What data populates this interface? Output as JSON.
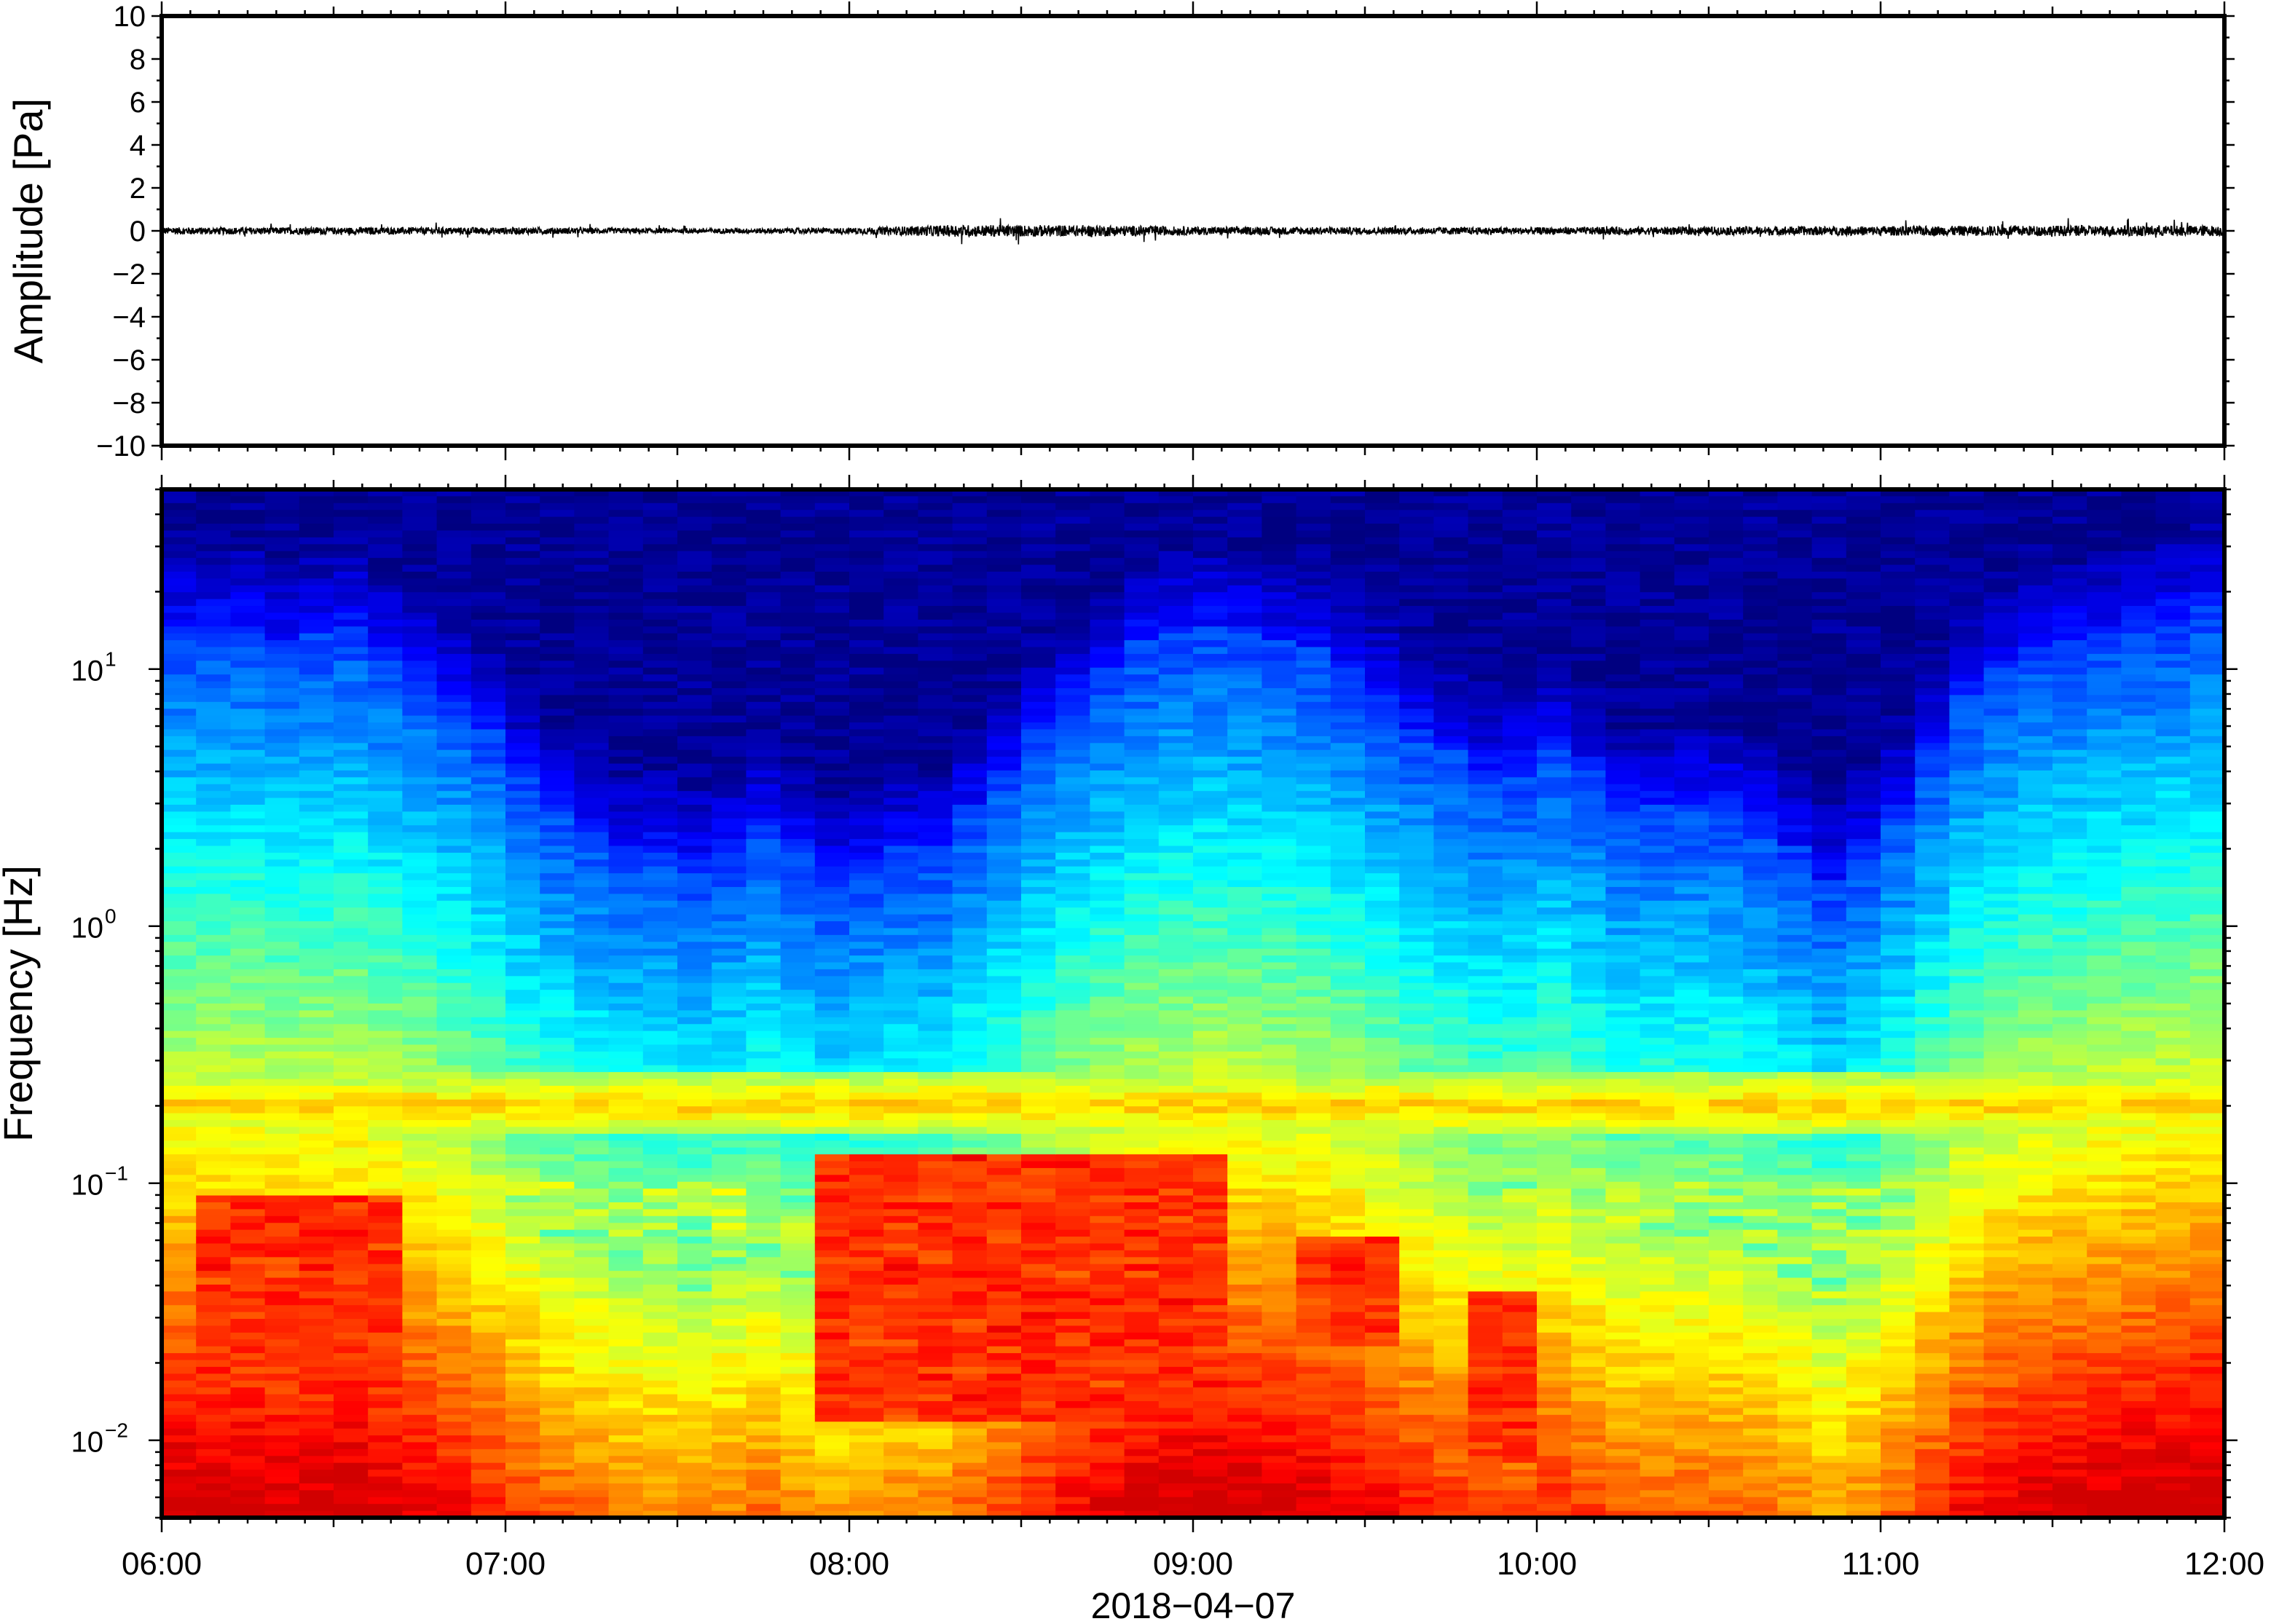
{
  "chart_data": [
    {
      "type": "line",
      "panel": "waveform",
      "ylabel": "Amplitude [Pa]",
      "ylim": [
        -10,
        10
      ],
      "yticks": [
        10,
        8,
        6,
        4,
        2,
        0,
        -2,
        -4,
        -6,
        -8,
        -10
      ],
      "ytick_labels": [
        "10",
        "8",
        "6",
        "4",
        "2",
        "0",
        "−2",
        "−4",
        "−6",
        "−8",
        "−10"
      ],
      "xlim": [
        "06:00",
        "12:00"
      ],
      "series": [
        {
          "color": "#000000",
          "time_hours": [
            6.0,
            6.5,
            7.0,
            7.5,
            8.0,
            8.3,
            8.5,
            8.8,
            9.0,
            9.5,
            10.0,
            10.5,
            11.0,
            11.5,
            12.0
          ],
          "envelope_pa": [
            0.3,
            0.3,
            0.3,
            0.2,
            0.25,
            0.5,
            0.5,
            0.45,
            0.35,
            0.3,
            0.3,
            0.35,
            0.4,
            0.45,
            0.45
          ]
        }
      ]
    },
    {
      "type": "heatmap",
      "panel": "spectrogram",
      "ylabel": "Frequency [Hz]",
      "yscale": "log",
      "ylim": [
        0.005,
        50
      ],
      "ytick_labels": [
        {
          "value": 10,
          "base": "10",
          "exp": "1"
        },
        {
          "value": 1,
          "base": "10",
          "exp": "0"
        },
        {
          "value": 0.1,
          "base": "10",
          "exp": "−1"
        },
        {
          "value": 0.01,
          "base": "10",
          "exp": "−2"
        }
      ],
      "xlabel": "2018−04−07",
      "xlim": [
        "06:00",
        "12:00"
      ],
      "x_tick_labels": [
        "06:00",
        "07:00",
        "08:00",
        "09:00",
        "10:00",
        "11:00",
        "12:00"
      ],
      "colormap": "jet",
      "columns": 60,
      "high_frequency_edge_hz": [
        15,
        15,
        15,
        13,
        14,
        15,
        12,
        10,
        8,
        6,
        4,
        3,
        2.5,
        2,
        2,
        1.8,
        2,
        2.5,
        2,
        1.5,
        1.8,
        2,
        2,
        3,
        4,
        6,
        8,
        10,
        13,
        14,
        15,
        14,
        13,
        12,
        10,
        8,
        6,
        5,
        4,
        4,
        5,
        4,
        3,
        3,
        3,
        3,
        2.5,
        2,
        1.5,
        2,
        3,
        5,
        8,
        10,
        12,
        13,
        14,
        15,
        16,
        18
      ],
      "low_frequency_hotspots": [
        {
          "time": "06:10-06:40",
          "freq_hz": [
            0.02,
            0.07
          ]
        },
        {
          "time": "08:00-09:00",
          "freq_hz": [
            0.015,
            0.1
          ]
        },
        {
          "time": "09:20-09:30",
          "freq_hz": [
            0.03,
            0.05
          ]
        },
        {
          "time": "09:50",
          "freq_hz": [
            0.01,
            0.03
          ]
        }
      ],
      "persistent_band_hz": 0.2
    }
  ]
}
